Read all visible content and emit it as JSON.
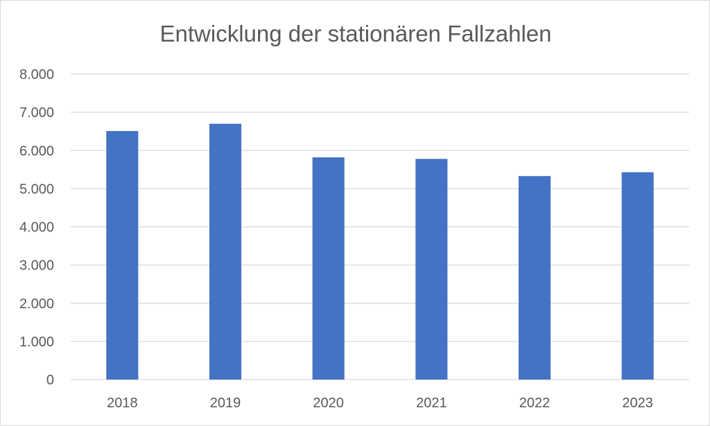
{
  "chart_data": {
    "type": "bar",
    "title": "Entwicklung der stationären Fallzahlen",
    "categories": [
      "2018",
      "2019",
      "2020",
      "2021",
      "2022",
      "2023"
    ],
    "values": [
      6510,
      6700,
      5820,
      5780,
      5330,
      5430
    ],
    "ylim": [
      0,
      8000
    ],
    "yticks": [
      0,
      1000,
      2000,
      3000,
      4000,
      5000,
      6000,
      7000,
      8000
    ],
    "ytick_labels": [
      "0",
      "1.000",
      "2.000",
      "3.000",
      "4.000",
      "5.000",
      "6.000",
      "7.000",
      "8.000"
    ],
    "grid": true,
    "legend": "none",
    "bar_color": "#4472c4",
    "grid_color": "#d9d9d9"
  }
}
